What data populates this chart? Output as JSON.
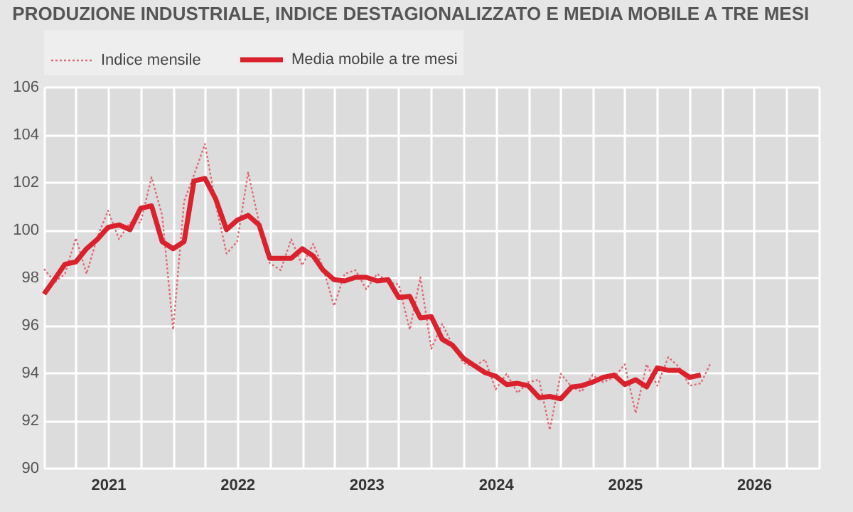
{
  "chart_data": {
    "type": "line",
    "title": "PRODUZIONE INDUSTRIALE, INDICE DESTAGIONALIZZATO E MEDIA MOBILE A TRE MESI",
    "x": [
      "2021-01",
      "2021-02",
      "2021-03",
      "2021-04",
      "2021-05",
      "2021-06",
      "2021-07",
      "2021-08",
      "2021-09",
      "2021-10",
      "2021-11",
      "2021-12",
      "2022-01",
      "2022-02",
      "2022-03",
      "2022-04",
      "2022-05",
      "2022-06",
      "2022-07",
      "2022-08",
      "2022-09",
      "2022-10",
      "2022-11",
      "2022-12",
      "2023-01",
      "2023-02",
      "2023-03",
      "2023-04",
      "2023-05",
      "2023-06",
      "2023-07",
      "2023-08",
      "2023-09",
      "2023-10",
      "2023-11",
      "2023-12",
      "2024-01",
      "2024-02",
      "2024-03",
      "2024-04",
      "2024-05",
      "2024-06",
      "2024-07",
      "2024-08",
      "2024-09",
      "2024-10",
      "2024-11",
      "2024-12",
      "2025-01",
      "2025-02",
      "2025-03",
      "2025-04",
      "2025-05",
      "2025-06",
      "2025-07",
      "2025-08",
      "2025-09",
      "2025-10",
      "2025-11",
      "2025-12",
      "2026-01",
      "2026-02",
      "2026-03"
    ],
    "series": [
      {
        "name": "Indice mensile",
        "color": "#e06a74",
        "line_style": "dotted",
        "values": [
          98.35,
          97.8,
          98.15,
          99.65,
          98.15,
          99.7,
          100.8,
          99.6,
          100.3,
          100.3,
          102.2,
          100.6,
          95.8,
          101.2,
          102.3,
          103.6,
          101.1,
          99.0,
          99.5,
          102.4,
          100.3,
          98.6,
          98.3,
          99.6,
          98.5,
          99.4,
          98.4,
          96.8,
          98.15,
          98.3,
          97.5,
          98.15,
          97.8,
          97.7,
          95.8,
          98.0,
          95.0,
          96.05,
          95.15,
          94.4,
          94.25,
          94.55,
          93.3,
          93.95,
          93.15,
          93.6,
          93.7,
          91.6,
          93.95,
          93.4,
          93.2,
          93.9,
          93.6,
          93.8,
          94.35,
          92.3,
          94.35,
          93.45,
          94.65,
          94.25,
          93.45,
          93.55,
          94.4
        ]
      },
      {
        "name": "Media mobile a tre mesi",
        "color": "#d9222d",
        "line_style": "solid",
        "values": [
          97.3,
          97.95,
          98.55,
          98.65,
          99.2,
          99.6,
          100.1,
          100.2,
          100.0,
          100.9,
          101.0,
          99.5,
          99.2,
          99.5,
          102.05,
          102.15,
          101.3,
          100.0,
          100.4,
          100.6,
          100.2,
          98.8,
          98.8,
          98.8,
          99.2,
          98.9,
          98.3,
          97.9,
          97.85,
          98.0,
          98.0,
          97.85,
          97.9,
          97.15,
          97.2,
          96.3,
          96.35,
          95.4,
          95.15,
          94.6,
          94.3,
          94.0,
          93.85,
          93.5,
          93.55,
          93.45,
          92.95,
          93.0,
          92.9,
          93.4,
          93.45,
          93.6,
          93.8,
          93.9,
          93.5,
          93.7,
          93.4,
          94.2,
          94.1,
          94.1,
          93.8,
          93.9,
          null
        ]
      }
    ],
    "xlim": [
      "2021-01-01",
      "2027-01-01"
    ],
    "xticks": [
      {
        "value": "2021-01-01",
        "label": null
      },
      {
        "value": "2021-04-01",
        "label": null
      },
      {
        "value": "2021-07-01",
        "label": "2021"
      },
      {
        "value": "2021-10-01",
        "label": null
      },
      {
        "value": "2022-01-01",
        "label": null
      },
      {
        "value": "2022-04-01",
        "label": null
      },
      {
        "value": "2022-07-01",
        "label": "2022"
      },
      {
        "value": "2022-10-01",
        "label": null
      },
      {
        "value": "2023-01-01",
        "label": null
      },
      {
        "value": "2023-04-01",
        "label": null
      },
      {
        "value": "2023-07-01",
        "label": "2023"
      },
      {
        "value": "2023-10-01",
        "label": null
      },
      {
        "value": "2024-01-01",
        "label": null
      },
      {
        "value": "2024-04-01",
        "label": null
      },
      {
        "value": "2024-07-01",
        "label": "2024"
      },
      {
        "value": "2024-10-01",
        "label": null
      },
      {
        "value": "2025-01-01",
        "label": null
      },
      {
        "value": "2025-04-01",
        "label": null
      },
      {
        "value": "2025-07-01",
        "label": "2025"
      },
      {
        "value": "2025-10-01",
        "label": null
      },
      {
        "value": "2026-01-01",
        "label": null
      },
      {
        "value": "2026-04-01",
        "label": null
      },
      {
        "value": "2026-07-01",
        "label": "2026"
      },
      {
        "value": "2026-10-01",
        "label": null
      },
      {
        "value": "2027-01-01",
        "label": null
      }
    ],
    "ylim": [
      90,
      106
    ],
    "yticks": [
      90,
      92,
      94,
      96,
      98,
      100,
      102,
      104,
      106
    ],
    "grid": true,
    "legend": "top",
    "marker": "none"
  }
}
